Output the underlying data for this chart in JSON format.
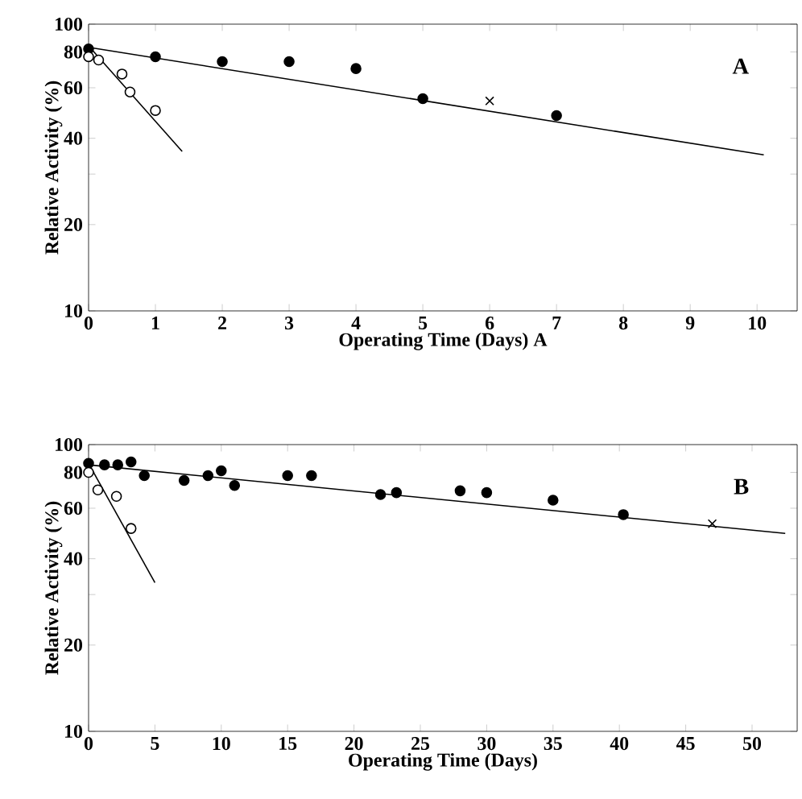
{
  "chart_data": [
    {
      "type": "scatter",
      "xlabel": "Operating Time (Days) A",
      "ylabel": "Relative Activity (%)",
      "annotations": [
        "A"
      ],
      "log": "y",
      "xlim": [
        0,
        10.6
      ],
      "ylim": [
        10,
        100
      ],
      "xticks": [
        0,
        1,
        2,
        3,
        4,
        5,
        6,
        7,
        8,
        9,
        10
      ],
      "yticks": [
        10,
        20,
        {
          "value": 30,
          "label": null
        },
        40,
        60,
        80,
        100
      ],
      "series": [
        {
          "type": "scatter",
          "marker": "circle",
          "color": "#000000",
          "x": [
            0,
            1,
            2,
            3,
            4,
            5,
            7
          ],
          "values": [
            82,
            77,
            74,
            74,
            70,
            55,
            48
          ]
        },
        {
          "type": "scatter",
          "marker": "cross",
          "color": "#000000",
          "x": [
            6
          ],
          "values": [
            54
          ]
        },
        {
          "type": "scatter",
          "marker": "circle",
          "color": "#ffffff",
          "x": [
            0,
            0.15,
            0.5,
            0.62,
            1
          ],
          "values": [
            77,
            75,
            67,
            58,
            50
          ]
        },
        {
          "type": "line",
          "marker": "none",
          "line_style": "solid",
          "color": "#000000",
          "x": [
            0,
            10.1
          ],
          "values": [
            83,
            35
          ]
        },
        {
          "type": "line",
          "marker": "none",
          "line_style": "solid",
          "color": "#000000",
          "x": [
            0,
            1.4
          ],
          "values": [
            84,
            36
          ]
        }
      ]
    },
    {
      "type": "scatter",
      "xlabel": "Operating Time (Days)",
      "ylabel": "Relative Activity (%)",
      "annotations": [
        "B"
      ],
      "log": "y",
      "xlim": [
        0,
        53.4
      ],
      "ylim": [
        10,
        100
      ],
      "xticks": [
        0,
        5,
        10,
        15,
        20,
        25,
        30,
        35,
        40,
        45,
        50
      ],
      "yticks": [
        10,
        20,
        {
          "value": 30,
          "label": null
        },
        40,
        60,
        80,
        100
      ],
      "series": [
        {
          "type": "scatter",
          "marker": "circle",
          "color": "#000000",
          "x": [
            0,
            1.2,
            2.2,
            3.2,
            4.2,
            7.2,
            9,
            10,
            11,
            15,
            16.8,
            22,
            23.2,
            28,
            30,
            35,
            40.3
          ],
          "values": [
            86,
            85,
            85,
            87,
            78,
            75,
            78,
            81,
            72,
            78,
            78,
            67,
            68,
            69,
            68,
            64,
            57
          ]
        },
        {
          "type": "scatter",
          "marker": "cross",
          "color": "#000000",
          "x": [
            47
          ],
          "values": [
            53
          ]
        },
        {
          "type": "scatter",
          "marker": "circle",
          "color": "#ffffff",
          "x": [
            0,
            0.7,
            2.1,
            3.2
          ],
          "values": [
            80,
            69.5,
            66,
            51
          ]
        },
        {
          "type": "line",
          "marker": "none",
          "line_style": "solid",
          "color": "#000000",
          "x": [
            0,
            52.5
          ],
          "values": [
            85,
            49
          ]
        },
        {
          "type": "line",
          "marker": "none",
          "line_style": "solid",
          "color": "#000000",
          "x": [
            0,
            5
          ],
          "values": [
            86,
            33
          ]
        }
      ]
    }
  ]
}
